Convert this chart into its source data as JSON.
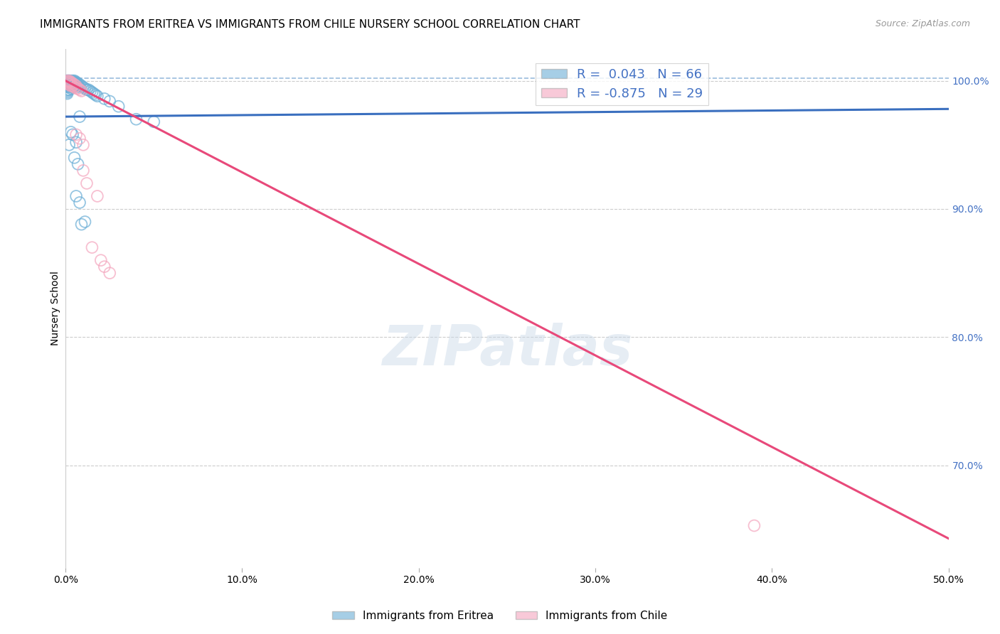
{
  "title": "IMMIGRANTS FROM ERITREA VS IMMIGRANTS FROM CHILE NURSERY SCHOOL CORRELATION CHART",
  "source": "Source: ZipAtlas.com",
  "ylabel": "Nursery School",
  "xlim": [
    0.0,
    0.5
  ],
  "ylim": [
    0.62,
    1.025
  ],
  "xticks": [
    0.0,
    0.1,
    0.2,
    0.3,
    0.4,
    0.5
  ],
  "xtick_labels": [
    "0.0%",
    "10.0%",
    "20.0%",
    "30.0%",
    "40.0%",
    "50.0%"
  ],
  "yticks_right": [
    0.7,
    0.8,
    0.9,
    1.0
  ],
  "ytick_labels_right": [
    "70.0%",
    "80.0%",
    "90.0%",
    "100.0%"
  ],
  "grid_color": "#cccccc",
  "background_color": "#ffffff",
  "watermark": "ZIPatlas",
  "legend_r1": "R =  0.043   N = 66",
  "legend_r2": "R = -0.875   N = 29",
  "legend_label1": "Immigrants from Eritrea",
  "legend_label2": "Immigrants from Chile",
  "blue_color": "#6baed6",
  "pink_color": "#f4a6be",
  "blue_line_color": "#3a6fbf",
  "pink_line_color": "#e8497a",
  "blue_scatter_x": [
    0.001,
    0.001,
    0.001,
    0.001,
    0.001,
    0.001,
    0.001,
    0.001,
    0.001,
    0.001,
    0.002,
    0.002,
    0.002,
    0.002,
    0.002,
    0.002,
    0.002,
    0.002,
    0.003,
    0.003,
    0.003,
    0.003,
    0.003,
    0.003,
    0.004,
    0.004,
    0.004,
    0.004,
    0.004,
    0.005,
    0.005,
    0.005,
    0.005,
    0.006,
    0.006,
    0.006,
    0.007,
    0.007,
    0.008,
    0.008,
    0.009,
    0.01,
    0.011,
    0.012,
    0.014,
    0.015,
    0.016,
    0.017,
    0.013,
    0.018,
    0.022,
    0.008,
    0.025,
    0.03,
    0.005,
    0.007,
    0.04,
    0.05,
    0.003,
    0.004,
    0.006,
    0.002,
    0.009,
    0.011,
    0.006,
    0.008
  ],
  "blue_scatter_y": [
    1.0,
    1.0,
    0.998,
    0.997,
    0.996,
    0.995,
    0.993,
    0.992,
    0.991,
    0.99,
    1.0,
    1.0,
    0.999,
    0.998,
    0.997,
    0.996,
    0.995,
    0.993,
    1.0,
    0.999,
    0.998,
    0.997,
    0.996,
    0.994,
    1.0,
    0.999,
    0.998,
    0.996,
    0.995,
    1.0,
    0.999,
    0.998,
    0.996,
    0.999,
    0.998,
    0.996,
    0.998,
    0.996,
    0.997,
    0.995,
    0.996,
    0.995,
    0.994,
    0.993,
    0.992,
    0.991,
    0.99,
    0.989,
    0.993,
    0.988,
    0.986,
    0.972,
    0.984,
    0.98,
    0.94,
    0.935,
    0.97,
    0.968,
    0.96,
    0.958,
    0.952,
    0.95,
    0.888,
    0.89,
    0.91,
    0.905
  ],
  "pink_scatter_x": [
    0.001,
    0.001,
    0.001,
    0.002,
    0.002,
    0.002,
    0.003,
    0.003,
    0.003,
    0.004,
    0.004,
    0.005,
    0.005,
    0.006,
    0.006,
    0.007,
    0.008,
    0.009,
    0.01,
    0.012,
    0.015,
    0.02,
    0.022,
    0.025,
    0.01,
    0.008,
    0.006,
    0.39,
    0.018
  ],
  "pink_scatter_y": [
    1.0,
    0.999,
    0.998,
    1.0,
    0.999,
    0.997,
    0.999,
    0.998,
    0.996,
    0.998,
    0.996,
    0.997,
    0.995,
    0.996,
    0.994,
    0.994,
    0.993,
    0.992,
    0.93,
    0.92,
    0.87,
    0.86,
    0.855,
    0.85,
    0.95,
    0.955,
    0.958,
    0.653,
    0.91
  ],
  "blue_line_x": [
    0.0,
    0.5
  ],
  "blue_line_y": [
    0.972,
    0.978
  ],
  "pink_line_x": [
    0.0,
    0.5
  ],
  "pink_line_y": [
    1.0,
    0.643
  ],
  "dashed_line_x": [
    0.0,
    0.5
  ],
  "dashed_line_y": [
    1.002,
    1.002
  ],
  "title_fontsize": 11,
  "axis_label_fontsize": 10,
  "tick_fontsize": 10,
  "legend_fontsize": 13
}
